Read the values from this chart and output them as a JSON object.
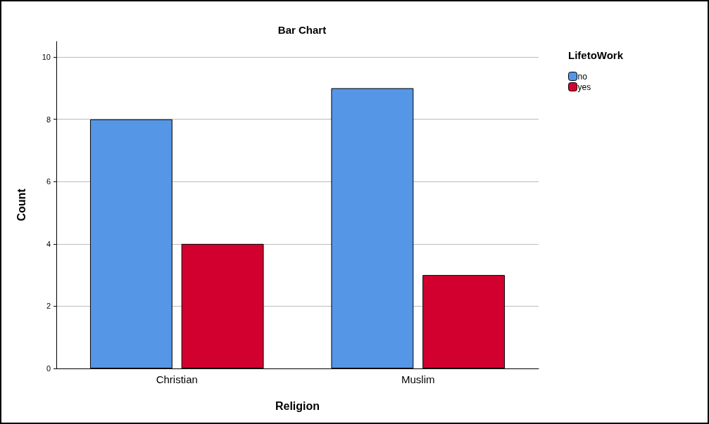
{
  "chart_data": {
    "type": "bar",
    "title": "Bar Chart",
    "xlabel": "Religion",
    "ylabel": "Count",
    "legend_title": "LifetoWork",
    "categories": [
      "Christian",
      "Muslim"
    ],
    "series": [
      {
        "name": "no",
        "color": "#5596e6",
        "values": [
          8,
          9
        ]
      },
      {
        "name": "yes",
        "color": "#d2002e",
        "values": [
          4,
          3
        ]
      }
    ],
    "ylim": [
      0,
      10.5
    ],
    "yticks": [
      0,
      2,
      4,
      6,
      8,
      10
    ],
    "grid": "y",
    "legend": "top right"
  }
}
